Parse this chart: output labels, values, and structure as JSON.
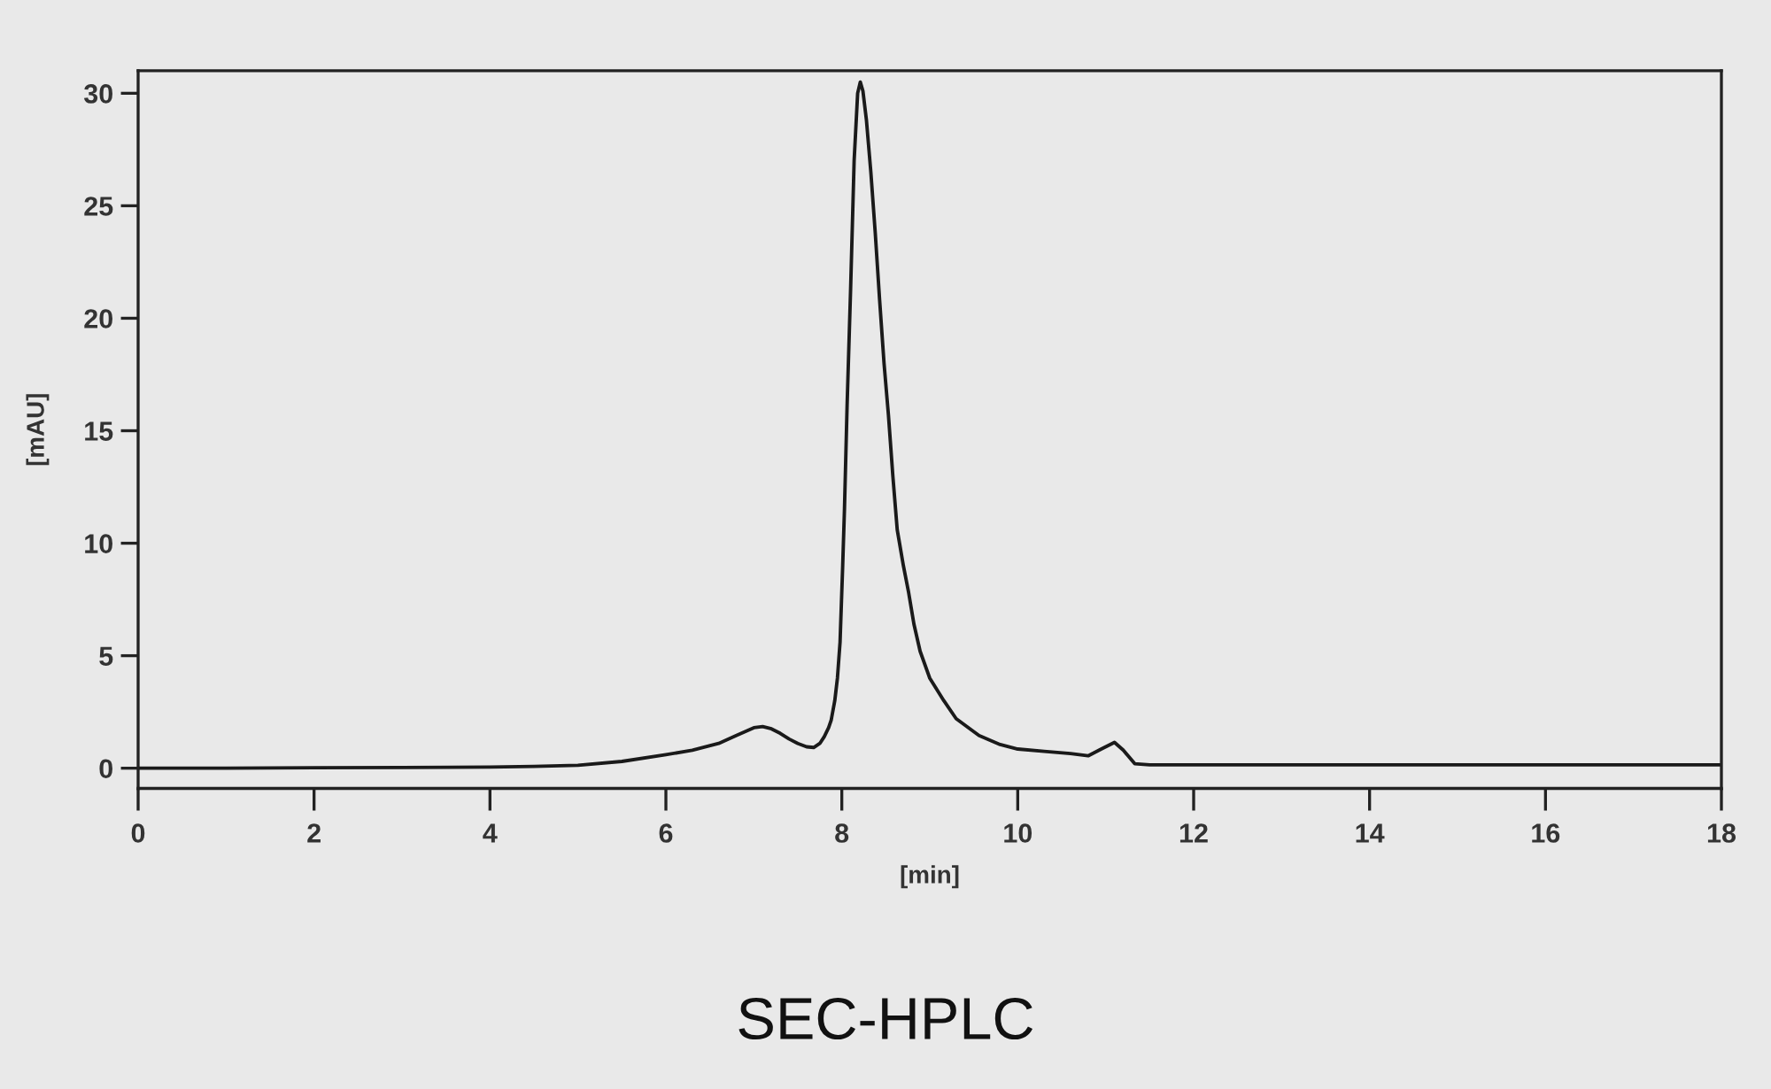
{
  "chart_data": {
    "type": "line",
    "title": "SEC-HPLC",
    "xlabel": "[min]",
    "ylabel": "[mAU]",
    "x": [
      0,
      1,
      2,
      3,
      4,
      4.5,
      5.0,
      5.5,
      6.0,
      6.3,
      6.6,
      6.8,
      7.0,
      7.1,
      7.2,
      7.3,
      7.4,
      7.5,
      7.6,
      7.68,
      7.75,
      7.8,
      7.85,
      7.88,
      7.92,
      7.95,
      7.98,
      8.01,
      8.03,
      8.06,
      8.1,
      8.14,
      8.18,
      8.21,
      8.24,
      8.28,
      8.33,
      8.38,
      8.43,
      8.48,
      8.53,
      8.58,
      8.63,
      8.7,
      8.76,
      8.82,
      8.89,
      9.0,
      9.16,
      9.3,
      9.56,
      9.8,
      10.0,
      10.3,
      10.6,
      10.8,
      10.95,
      11.1,
      11.2,
      11.33,
      11.5,
      12,
      14,
      16,
      18
    ],
    "series": [
      {
        "color": "#1a1a1a",
        "values": [
          0.0,
          0.0,
          0.02,
          0.03,
          0.05,
          0.08,
          0.13,
          0.3,
          0.6,
          0.8,
          1.1,
          1.45,
          1.8,
          1.85,
          1.75,
          1.55,
          1.3,
          1.1,
          0.95,
          0.92,
          1.1,
          1.4,
          1.8,
          2.15,
          3.0,
          4.0,
          5.6,
          9.0,
          11.5,
          16.1,
          21.3,
          27.0,
          30.0,
          30.5,
          30.1,
          28.8,
          26.5,
          23.8,
          20.8,
          18.0,
          15.7,
          13.0,
          10.6,
          9.0,
          7.8,
          6.4,
          5.2,
          4.0,
          3.0,
          2.2,
          1.45,
          1.05,
          0.85,
          0.75,
          0.65,
          0.55,
          0.85,
          1.15,
          0.8,
          0.2,
          0.15,
          0.15,
          0.15,
          0.15,
          0.15
        ]
      }
    ],
    "xlim": [
      0,
      18
    ],
    "ylim": [
      -0.9,
      31
    ],
    "xticks": [
      0,
      2,
      4,
      6,
      8,
      10,
      12,
      14,
      16,
      18
    ],
    "yticks": [
      0,
      5,
      10,
      15,
      20,
      25,
      30
    ],
    "grid": false,
    "line_style": "solid"
  }
}
